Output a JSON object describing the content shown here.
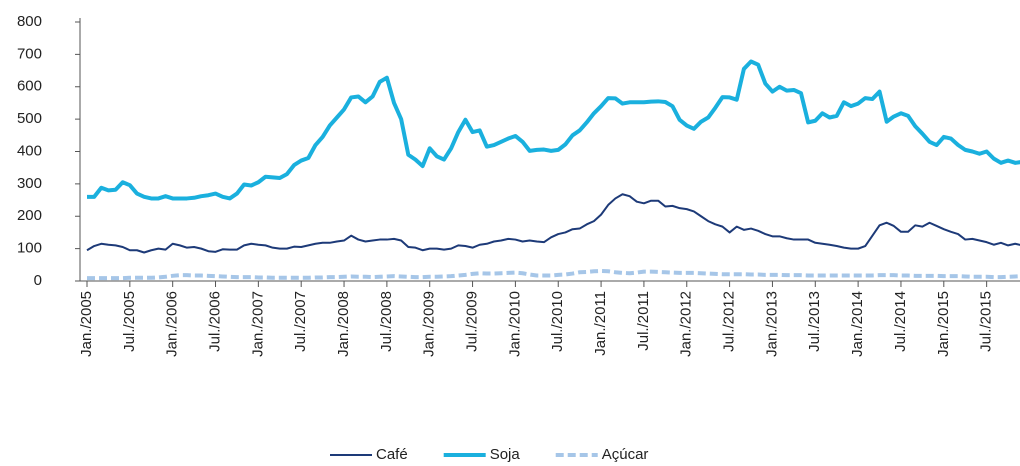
{
  "chart_data": {
    "type": "line",
    "categories": [
      "Jan./2005",
      null,
      null,
      null,
      null,
      null,
      "Jul./2005",
      null,
      null,
      null,
      null,
      null,
      "Jan./2006",
      null,
      null,
      null,
      null,
      null,
      "Jul./2006",
      null,
      null,
      null,
      null,
      null,
      "Jan./2007",
      null,
      null,
      null,
      null,
      null,
      "Jul./2007",
      null,
      null,
      null,
      null,
      null,
      "Jan./2008",
      null,
      null,
      null,
      null,
      null,
      "Jul./2008",
      null,
      null,
      null,
      null,
      null,
      "Jan./2009",
      null,
      null,
      null,
      null,
      null,
      "Jul./2009",
      null,
      null,
      null,
      null,
      null,
      "Jan./2010",
      null,
      null,
      null,
      null,
      null,
      "Jul./2010",
      null,
      null,
      null,
      null,
      null,
      "Jan./2011",
      null,
      null,
      null,
      null,
      null,
      "Jul./2011",
      null,
      null,
      null,
      null,
      null,
      "Jan./2012",
      null,
      null,
      null,
      null,
      null,
      "Jul./2012",
      null,
      null,
      null,
      null,
      null,
      "Jan./2013",
      null,
      null,
      null,
      null,
      null,
      "Jul./2013",
      null,
      null,
      null,
      null,
      null,
      "Jan./2014",
      null,
      null,
      null,
      null,
      null,
      "Jul./2014",
      null,
      null,
      null,
      null,
      null,
      "Jan./2015",
      null,
      null,
      null,
      null,
      null,
      "Jul./2015",
      null,
      null,
      null,
      null,
      null
    ],
    "series": [
      {
        "name": "Café",
        "color": "#1d3a78",
        "line_width": 2,
        "dashed": false,
        "values": [
          95,
          108,
          115,
          112,
          110,
          105,
          95,
          95,
          88,
          95,
          100,
          97,
          115,
          110,
          103,
          105,
          100,
          92,
          90,
          98,
          97,
          97,
          110,
          115,
          112,
          110,
          103,
          100,
          100,
          106,
          105,
          110,
          115,
          118,
          118,
          122,
          125,
          140,
          128,
          122,
          125,
          128,
          128,
          130,
          125,
          105,
          103,
          95,
          100,
          100,
          97,
          100,
          110,
          108,
          103,
          112,
          115,
          122,
          125,
          130,
          128,
          122,
          125,
          122,
          120,
          135,
          145,
          150,
          160,
          162,
          175,
          185,
          205,
          235,
          255,
          268,
          262,
          245,
          240,
          248,
          248,
          230,
          232,
          225,
          222,
          215,
          200,
          185,
          175,
          168,
          150,
          168,
          158,
          162,
          155,
          145,
          138,
          138,
          132,
          128,
          128,
          128,
          118,
          115,
          112,
          108,
          103,
          100,
          100,
          108,
          140,
          172,
          180,
          170,
          152,
          152,
          172,
          168,
          180,
          170,
          160,
          152,
          145,
          128,
          130,
          125,
          120,
          112,
          118,
          110,
          115,
          110
        ]
      },
      {
        "name": "Soja",
        "color": "#1ab0de",
        "line_width": 4,
        "dashed": false,
        "values": [
          260,
          260,
          288,
          280,
          282,
          305,
          296,
          270,
          260,
          255,
          255,
          262,
          255,
          255,
          255,
          257,
          262,
          265,
          270,
          260,
          255,
          270,
          298,
          295,
          305,
          322,
          320,
          318,
          330,
          358,
          372,
          380,
          420,
          445,
          480,
          505,
          530,
          567,
          570,
          552,
          570,
          615,
          628,
          550,
          500,
          390,
          375,
          355,
          410,
          385,
          375,
          410,
          460,
          498,
          460,
          465,
          415,
          420,
          430,
          440,
          448,
          430,
          402,
          405,
          406,
          402,
          405,
          422,
          450,
          465,
          490,
          518,
          540,
          565,
          564,
          548,
          552,
          552,
          552,
          554,
          555,
          553,
          540,
          498,
          480,
          470,
          492,
          505,
          535,
          568,
          567,
          560,
          655,
          678,
          668,
          610,
          585,
          600,
          588,
          590,
          580,
          490,
          495,
          518,
          505,
          510,
          552,
          540,
          548,
          565,
          562,
          585,
          492,
          508,
          518,
          510,
          478,
          455,
          430,
          420,
          445,
          440,
          420,
          405,
          400,
          393,
          400,
          378,
          365,
          372,
          365,
          368
        ]
      },
      {
        "name": "Açúcar",
        "color": "#a6c6e8",
        "line_width": 4,
        "dashed": true,
        "values": [
          9,
          9,
          9,
          9,
          9,
          9,
          10,
          10,
          10,
          10,
          11,
          13,
          16,
          18,
          18,
          17,
          17,
          16,
          15,
          14,
          13,
          12,
          12,
          12,
          11,
          11,
          10,
          10,
          10,
          10,
          10,
          10,
          11,
          11,
          12,
          12,
          13,
          14,
          13,
          13,
          12,
          13,
          14,
          15,
          14,
          13,
          12,
          12,
          13,
          13,
          14,
          15,
          17,
          19,
          22,
          24,
          23,
          23,
          24,
          25,
          26,
          24,
          20,
          17,
          17,
          17,
          19,
          20,
          23,
          27,
          28,
          30,
          31,
          30,
          27,
          25,
          24,
          26,
          29,
          29,
          28,
          27,
          26,
          25,
          25,
          25,
          24,
          23,
          22,
          21,
          21,
          21,
          21,
          20,
          20,
          19,
          19,
          19,
          18,
          18,
          18,
          17,
          17,
          17,
          17,
          17,
          17,
          17,
          17,
          17,
          17,
          18,
          18,
          18,
          17,
          17,
          16,
          16,
          16,
          16,
          15,
          15,
          15,
          14,
          13,
          13,
          13,
          12,
          12,
          13,
          14,
          15
        ]
      }
    ],
    "ylim": [
      0,
      800
    ],
    "yticks": [
      0,
      100,
      200,
      300,
      400,
      500,
      600,
      700,
      800
    ],
    "grid": false,
    "legend": "bottom"
  }
}
